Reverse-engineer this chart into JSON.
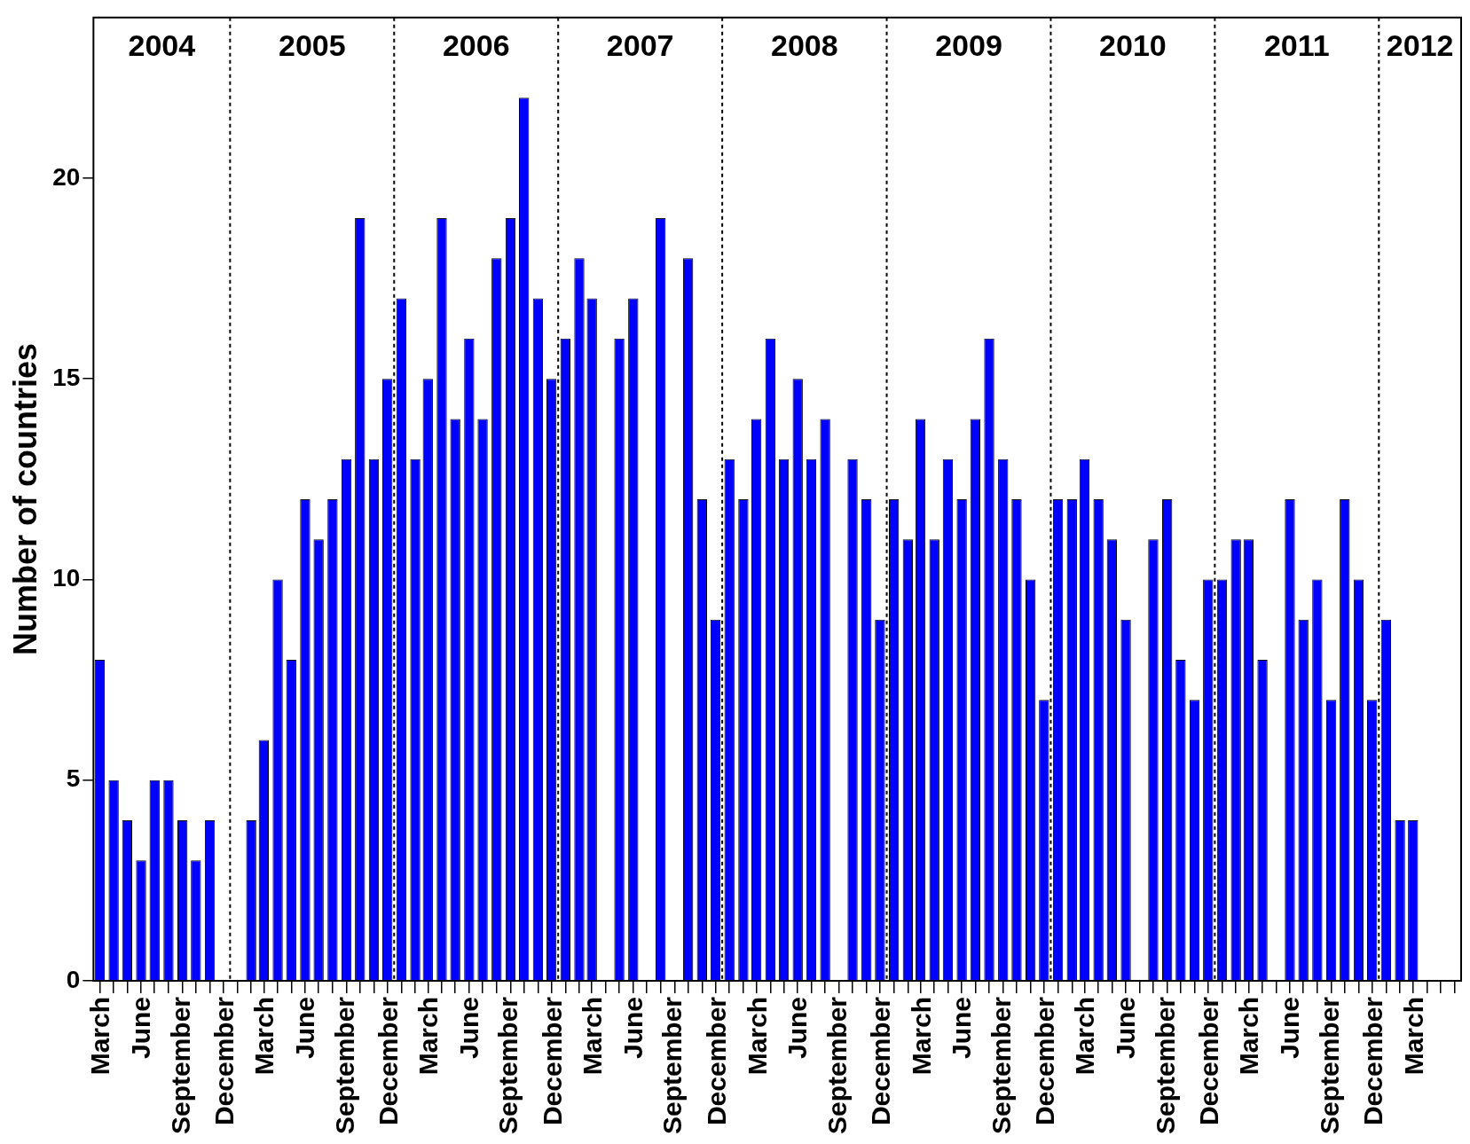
{
  "chart_data": {
    "type": "bar",
    "ylabel": "Number of countries",
    "x": [
      "2004-03",
      "2004-04",
      "2004-05",
      "2004-06",
      "2004-07",
      "2004-08",
      "2004-09",
      "2004-10",
      "2004-11",
      "2004-12",
      "2005-01",
      "2005-02",
      "2005-03",
      "2005-04",
      "2005-05",
      "2005-06",
      "2005-07",
      "2005-08",
      "2005-09",
      "2005-10",
      "2005-11",
      "2005-12",
      "2006-01",
      "2006-02",
      "2006-03",
      "2006-04",
      "2006-05",
      "2006-06",
      "2006-07",
      "2006-08",
      "2006-09",
      "2006-10",
      "2006-11",
      "2006-12",
      "2007-01",
      "2007-02",
      "2007-03",
      "2007-04",
      "2007-05",
      "2007-06",
      "2007-07",
      "2007-08",
      "2007-09",
      "2007-10",
      "2007-11",
      "2007-12",
      "2008-01",
      "2008-02",
      "2008-03",
      "2008-04",
      "2008-05",
      "2008-06",
      "2008-07",
      "2008-08",
      "2008-09",
      "2008-10",
      "2008-11",
      "2008-12",
      "2009-01",
      "2009-02",
      "2009-03",
      "2009-04",
      "2009-05",
      "2009-06",
      "2009-07",
      "2009-08",
      "2009-09",
      "2009-10",
      "2009-11",
      "2009-12",
      "2010-01",
      "2010-02",
      "2010-03",
      "2010-04",
      "2010-05",
      "2010-06",
      "2010-07",
      "2010-08",
      "2010-09",
      "2010-10",
      "2010-11",
      "2010-12",
      "2011-01",
      "2011-02",
      "2011-03",
      "2011-04",
      "2011-05",
      "2011-06",
      "2011-07",
      "2011-08",
      "2011-09",
      "2011-10",
      "2011-11",
      "2011-12",
      "2012-01",
      "2012-02",
      "2012-03"
    ],
    "values": [
      8,
      5,
      4,
      3,
      5,
      5,
      4,
      3,
      4,
      null,
      null,
      4,
      6,
      10,
      8,
      12,
      11,
      12,
      13,
      19,
      13,
      15,
      17,
      13,
      15,
      19,
      14,
      16,
      14,
      18,
      19,
      22,
      17,
      15,
      16,
      18,
      17,
      null,
      16,
      17,
      null,
      19,
      null,
      18,
      12,
      9,
      13,
      12,
      14,
      16,
      13,
      15,
      13,
      14,
      null,
      13,
      12,
      9,
      12,
      11,
      14,
      11,
      13,
      12,
      14,
      16,
      13,
      12,
      10,
      7,
      12,
      12,
      13,
      12,
      11,
      9,
      null,
      11,
      12,
      8,
      7,
      10,
      10,
      11,
      11,
      8,
      null,
      12,
      9,
      10,
      7,
      12,
      10,
      7,
      9,
      4,
      4
    ],
    "color": "#0000ff",
    "xlim": [
      "2004-02-16",
      "2012-06-16"
    ],
    "ylim": [
      0,
      24
    ],
    "yticks": [
      0,
      5,
      10,
      15,
      20
    ],
    "xticks": [
      {
        "value": "2004-03",
        "label": "March"
      },
      {
        "value": "2004-04",
        "label": null
      },
      {
        "value": "2004-05",
        "label": null
      },
      {
        "value": "2004-06",
        "label": "June"
      },
      {
        "value": "2004-07",
        "label": null
      },
      {
        "value": "2004-08",
        "label": null
      },
      {
        "value": "2004-09",
        "label": "September"
      },
      {
        "value": "2004-10",
        "label": null
      },
      {
        "value": "2004-11",
        "label": null
      },
      {
        "value": "2004-12",
        "label": "December"
      },
      {
        "value": "2005-01",
        "label": null
      },
      {
        "value": "2005-02",
        "label": null
      },
      {
        "value": "2005-03",
        "label": "March"
      },
      {
        "value": "2005-04",
        "label": null
      },
      {
        "value": "2005-05",
        "label": null
      },
      {
        "value": "2005-06",
        "label": "June"
      },
      {
        "value": "2005-07",
        "label": null
      },
      {
        "value": "2005-08",
        "label": null
      },
      {
        "value": "2005-09",
        "label": "September"
      },
      {
        "value": "2005-10",
        "label": null
      },
      {
        "value": "2005-11",
        "label": null
      },
      {
        "value": "2005-12",
        "label": "December"
      },
      {
        "value": "2006-01",
        "label": null
      },
      {
        "value": "2006-02",
        "label": null
      },
      {
        "value": "2006-03",
        "label": "March"
      },
      {
        "value": "2006-04",
        "label": null
      },
      {
        "value": "2006-05",
        "label": null
      },
      {
        "value": "2006-06",
        "label": "June"
      },
      {
        "value": "2006-07",
        "label": null
      },
      {
        "value": "2006-08",
        "label": null
      },
      {
        "value": "2006-09",
        "label": "September"
      },
      {
        "value": "2006-10",
        "label": null
      },
      {
        "value": "2006-11",
        "label": null
      },
      {
        "value": "2006-12",
        "label": "December"
      },
      {
        "value": "2007-01",
        "label": null
      },
      {
        "value": "2007-02",
        "label": null
      },
      {
        "value": "2007-03",
        "label": "March"
      },
      {
        "value": "2007-04",
        "label": null
      },
      {
        "value": "2007-05",
        "label": null
      },
      {
        "value": "2007-06",
        "label": "June"
      },
      {
        "value": "2007-07",
        "label": null
      },
      {
        "value": "2007-08",
        "label": null
      },
      {
        "value": "2007-09",
        "label": "September"
      },
      {
        "value": "2007-10",
        "label": null
      },
      {
        "value": "2007-11",
        "label": null
      },
      {
        "value": "2007-12",
        "label": "December"
      },
      {
        "value": "2008-01",
        "label": null
      },
      {
        "value": "2008-02",
        "label": null
      },
      {
        "value": "2008-03",
        "label": "March"
      },
      {
        "value": "2008-04",
        "label": null
      },
      {
        "value": "2008-05",
        "label": null
      },
      {
        "value": "2008-06",
        "label": "June"
      },
      {
        "value": "2008-07",
        "label": null
      },
      {
        "value": "2008-08",
        "label": null
      },
      {
        "value": "2008-09",
        "label": "September"
      },
      {
        "value": "2008-10",
        "label": null
      },
      {
        "value": "2008-11",
        "label": null
      },
      {
        "value": "2008-12",
        "label": "December"
      },
      {
        "value": "2009-01",
        "label": null
      },
      {
        "value": "2009-02",
        "label": null
      },
      {
        "value": "2009-03",
        "label": "March"
      },
      {
        "value": "2009-04",
        "label": null
      },
      {
        "value": "2009-05",
        "label": null
      },
      {
        "value": "2009-06",
        "label": "June"
      },
      {
        "value": "2009-07",
        "label": null
      },
      {
        "value": "2009-08",
        "label": null
      },
      {
        "value": "2009-09",
        "label": "September"
      },
      {
        "value": "2009-10",
        "label": null
      },
      {
        "value": "2009-11",
        "label": null
      },
      {
        "value": "2009-12",
        "label": "December"
      },
      {
        "value": "2010-01",
        "label": null
      },
      {
        "value": "2010-02",
        "label": null
      },
      {
        "value": "2010-03",
        "label": "March"
      },
      {
        "value": "2010-04",
        "label": null
      },
      {
        "value": "2010-05",
        "label": null
      },
      {
        "value": "2010-06",
        "label": "June"
      },
      {
        "value": "2010-07",
        "label": null
      },
      {
        "value": "2010-08",
        "label": null
      },
      {
        "value": "2010-09",
        "label": "September"
      },
      {
        "value": "2010-10",
        "label": null
      },
      {
        "value": "2010-11",
        "label": null
      },
      {
        "value": "2010-12",
        "label": "December"
      },
      {
        "value": "2011-01",
        "label": null
      },
      {
        "value": "2011-02",
        "label": null
      },
      {
        "value": "2011-03",
        "label": "March"
      },
      {
        "value": "2011-04",
        "label": null
      },
      {
        "value": "2011-05",
        "label": null
      },
      {
        "value": "2011-06",
        "label": "June"
      },
      {
        "value": "2011-07",
        "label": null
      },
      {
        "value": "2011-08",
        "label": null
      },
      {
        "value": "2011-09",
        "label": "September"
      },
      {
        "value": "2011-10",
        "label": null
      },
      {
        "value": "2011-11",
        "label": null
      },
      {
        "value": "2011-12",
        "label": "December"
      },
      {
        "value": "2012-01",
        "label": null
      },
      {
        "value": "2012-02",
        "label": null
      },
      {
        "value": "2012-03",
        "label": "March"
      },
      {
        "value": "2012-04",
        "label": null
      },
      {
        "value": "2012-05",
        "label": null
      },
      {
        "value": "2012-06",
        "label": null
      }
    ],
    "ref_lines": [
      {
        "axis": "x",
        "value": "2004-12-16",
        "line_style": "dotted"
      },
      {
        "axis": "x",
        "value": "2005-12-16",
        "line_style": "dotted"
      },
      {
        "axis": "x",
        "value": "2006-12-16",
        "line_style": "dotted"
      },
      {
        "axis": "x",
        "value": "2007-12-16",
        "line_style": "dotted"
      },
      {
        "axis": "x",
        "value": "2008-12-16",
        "line_style": "dotted"
      },
      {
        "axis": "x",
        "value": "2009-12-16",
        "line_style": "dotted"
      },
      {
        "axis": "x",
        "value": "2010-12-16",
        "line_style": "dotted"
      },
      {
        "axis": "x",
        "value": "2011-12-16",
        "line_style": "dotted"
      }
    ],
    "annotations": [
      "2004",
      "2005",
      "2006",
      "2007",
      "2008",
      "2009",
      "2010",
      "2011",
      "2012"
    ]
  }
}
